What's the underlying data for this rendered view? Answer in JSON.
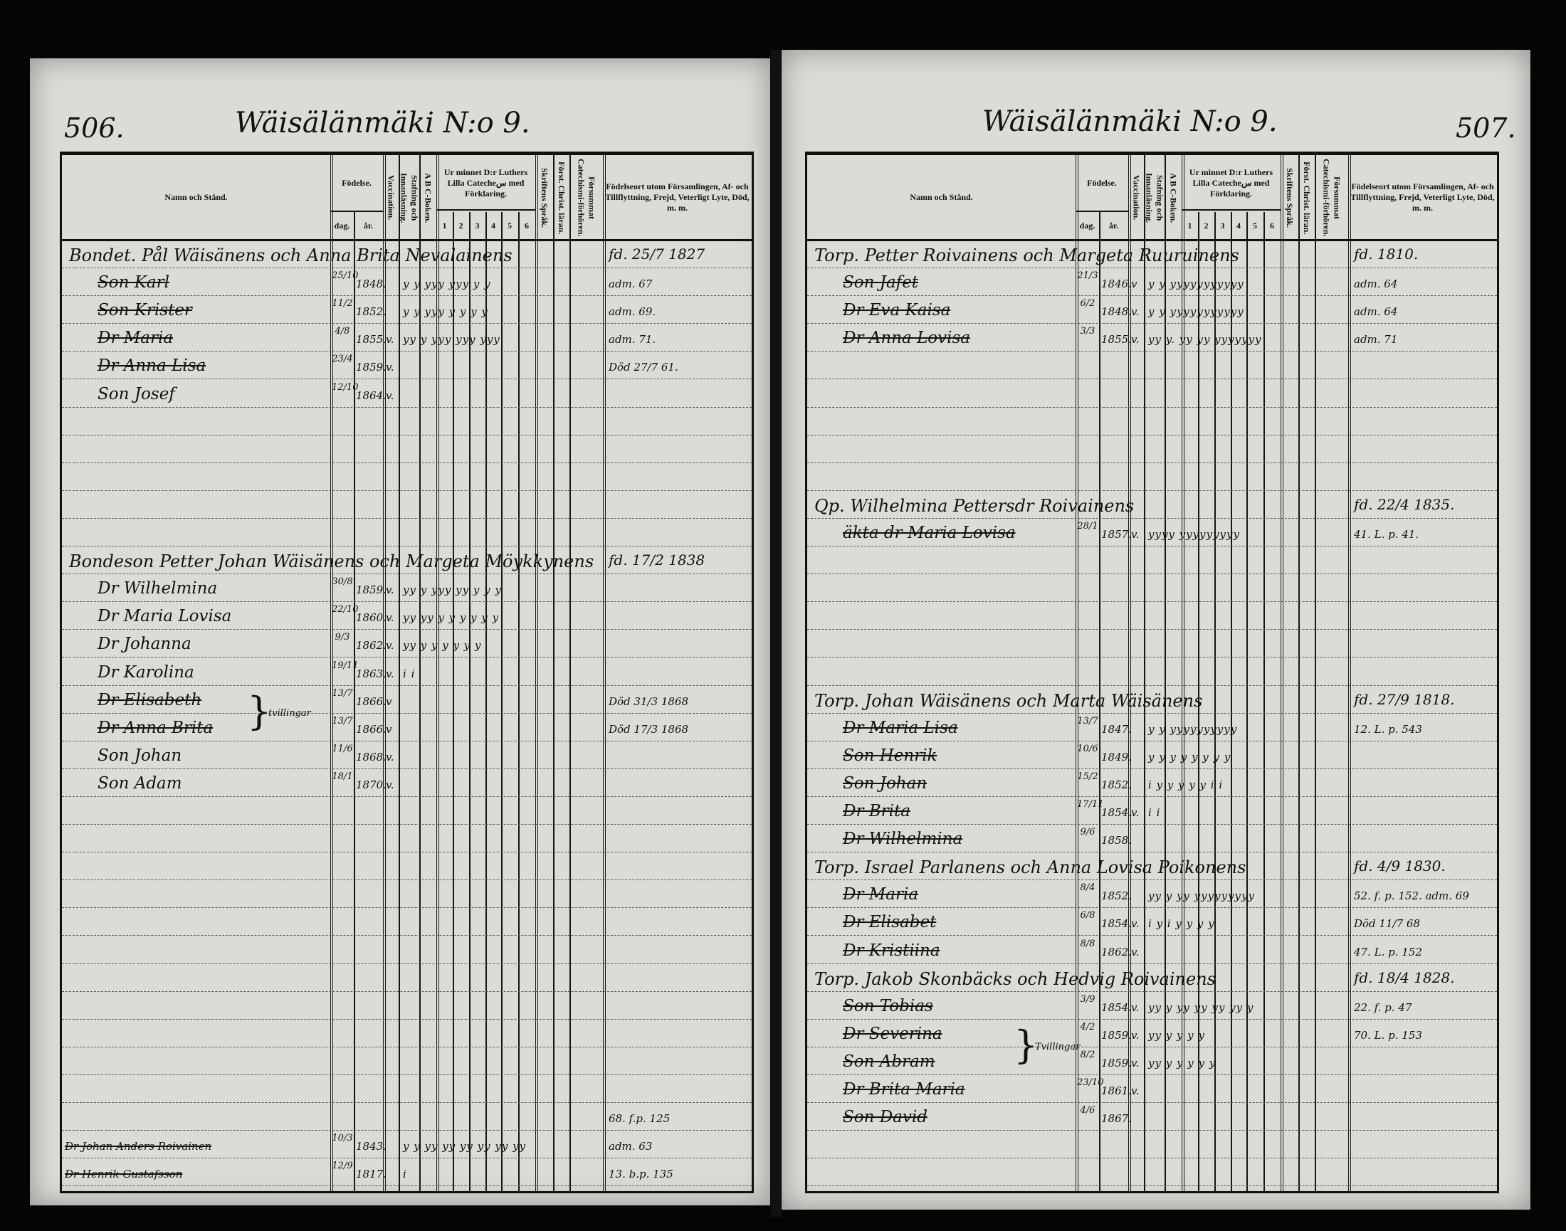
{
  "header": {
    "name_col": "Namn och Stånd.",
    "birth": "Födelse.",
    "day": "dag.",
    "year": "år.",
    "vaccination": "Vaccination.",
    "reading": "Stafning och Innanläsning.",
    "abc": "A B C-Boken.",
    "catechism": "Ur minnet D:r Luthers Lilla Catecheس med Förklaring.",
    "catechism_parts": [
      "1",
      "2",
      "3",
      "4",
      "5",
      "6"
    ],
    "scripture": "Skriftens Språk.",
    "christ": "Först. Christ. läran.",
    "missed": "Försummat Catechismi-förhören.",
    "notes": "Födelseort utom Församlingen, Af- och Tillflyttning, Frejd, Veterligt Lyte, Död, m. m."
  },
  "left": {
    "page_number": "506.",
    "title": "Wäisälänmäki N:o 9.",
    "twin_label": "tvillingar",
    "rows": [
      {
        "head": true,
        "name": "Bondet. Pål Wäisänens och Anna Brita Nevalainens",
        "note": "fd. 25/7 1827"
      },
      {
        "name": "Son Karl",
        "dag": "25/10",
        "year": "1848.",
        "vacc": "",
        "marks": "y  y  yyy yyy  y  y",
        "note": "adm. 67",
        "struck": true
      },
      {
        "name": "Son Krister",
        "dag": "11/2",
        "year": "1852.",
        "vacc": "",
        "marks": "y y  yyy  y  y  y  y",
        "note": "adm. 69.",
        "struck": true
      },
      {
        "name": "Dr Maria",
        "dag": "4/8",
        "year": "1855.",
        "vacc": "v.",
        "marks": "yy  y  yyy  yyy  yyy",
        "note": "adm. 71.",
        "struck": true
      },
      {
        "name": "Dr Anna Lisa",
        "dag": "23/4",
        "year": "1859.",
        "vacc": "v.",
        "marks": "",
        "note": "Död 27/7 61.",
        "struck": true
      },
      {
        "name": "Son Josef",
        "dag": "12/10",
        "year": "1864.",
        "vacc": "v."
      },
      {},
      {},
      {},
      {},
      {},
      {
        "head": true,
        "name": "Bondeson Petter Johan Wäisänens och Margeta Möykkynens",
        "note": "fd. 17/2 1838"
      },
      {
        "name": "Dr Wilhelmina",
        "dag": "30/8",
        "year": "1859.",
        "vacc": "v.",
        "marks": "yy  y  yyy  yy  y  y  y"
      },
      {
        "name": "Dr Maria Lovisa",
        "dag": "22/10",
        "year": "1860.",
        "vacc": "v.",
        "marks": "yy  yy  y  y  y  y  y  y"
      },
      {
        "name": "Dr Johanna",
        "dag": "9/3",
        "year": "1862.",
        "vacc": "v.",
        "marks": "yy  y  y  y  y  y  y"
      },
      {
        "name": "Dr Karolina",
        "dag": "19/11",
        "year": "1863.",
        "vacc": "v.",
        "marks": "i   i"
      },
      {
        "name": "Dr Elisabeth",
        "dag": "13/7",
        "year": "1866.",
        "vacc": "v",
        "note": "Död 31/3 1868",
        "struck": true
      },
      {
        "name": "Dr Anna Brita",
        "dag": "13/7",
        "year": "1866.",
        "vacc": "v",
        "note": "Död 17/3 1868",
        "struck": true
      },
      {
        "name": "Son Johan",
        "dag": "11/6",
        "year": "1868.",
        "vacc": "v."
      },
      {
        "name": "Son Adam",
        "dag": "18/1",
        "year": "1870.",
        "vacc": "v."
      },
      {},
      {},
      {},
      {},
      {},
      {},
      {},
      {},
      {},
      {},
      {},
      {
        "small": true,
        "name": "",
        "note": "68. f.p. 125"
      },
      {
        "small": true,
        "name": "Dr Johan Anders Roivainen",
        "dag": "10/3",
        "year": "1843.",
        "marks": "y  y  yy yy yy yy yy yy",
        "note": "adm. 63",
        "struck": true
      },
      {
        "small": true,
        "name": "Dr Henrik Gustafsson",
        "dag": "12/9",
        "year": "1817.",
        "marks": "i",
        "note": "13. b.p. 135",
        "struck": true
      }
    ]
  },
  "right": {
    "page_number": "507.",
    "title": "Wäisälänmäki N:o 9.",
    "twin_label": "Tvillingar",
    "rows": [
      {
        "head": true,
        "name": "Torp. Petter Roivainens och Margeta Ruuruinens",
        "note": "fd. 1810."
      },
      {
        "name": "Son Jafet",
        "dag": "21/3",
        "year": "1846.",
        "vacc": "v",
        "marks": "y  y  yyyyyyyyyyy",
        "note": "adm. 64",
        "struck": true
      },
      {
        "name": "Dr Eva Kaisa",
        "dag": "6/2",
        "year": "1848.",
        "vacc": "v.",
        "marks": "y  y  yyyyyyyyyyy",
        "note": "adm. 64",
        "struck": true
      },
      {
        "name": "Dr Anna Lovisa",
        "dag": "3/3",
        "year": "1855.",
        "vacc": "v.",
        "marks": "yy  y. yy yy yyyyyyy",
        "note": "adm. 71",
        "struck": true
      },
      {},
      {},
      {},
      {},
      {},
      {
        "head": true,
        "name": "Qp. Wilhelmina Pettersdr Roivainens",
        "note": "fd. 22/4 1835."
      },
      {
        "name": "äkta dr Maria Lovisa",
        "dag": "28/1",
        "year": "1857.",
        "vacc": "v.",
        "marks": "yyyy yyyyyyyyy",
        "note": "41. L. p. 41.",
        "struck": true
      },
      {},
      {},
      {},
      {},
      {},
      {
        "head": true,
        "name": "Torp. Johan Wäisänens och Marta Wäisänens",
        "note": "fd. 27/9 1818."
      },
      {
        "name": "Dr Maria Lisa",
        "dag": "13/7",
        "year": "1847.",
        "marks": "y  y  yyyyyyyyyy",
        "note": "12. L. p. 543",
        "struck": true
      },
      {
        "name": "Son Henrik",
        "dag": "10/6",
        "year": "1849.",
        "marks": "y  y  y  y  y  y  y  y",
        "struck": true
      },
      {
        "name": "Son Johan",
        "dag": "15/2",
        "year": "1852.",
        "marks": "i  y  y  y  y  y  i  i",
        "struck": true
      },
      {
        "name": "Dr Brita",
        "dag": "17/11",
        "year": "1854.",
        "vacc": "v.",
        "marks": "i   i",
        "struck": true
      },
      {
        "name": "Dr Wilhelmina",
        "dag": "9/6",
        "year": "1858.",
        "struck": true
      },
      {
        "head": true,
        "name": "Torp. Israel Parlanens och Anna Lovisa Poikonens",
        "note": "fd. 4/9 1830."
      },
      {
        "name": "Dr Maria",
        "dag": "8/4",
        "year": "1852.",
        "marks": "yy  y  yy yyyyyyyyy",
        "note": "52. f. p. 152. adm. 69",
        "struck": true
      },
      {
        "name": "Dr Elisabet",
        "dag": "6/8",
        "year": "1854.",
        "vacc": "v.",
        "marks": "i  y  i  y  y  y  y",
        "note": "Död 11/7 68",
        "struck": true
      },
      {
        "name": "Dr Kristiina",
        "dag": "8/8",
        "year": "1862.",
        "vacc": "v.",
        "note": "47. L. p. 152",
        "struck": true
      },
      {
        "head": true,
        "name": "Torp. Jakob Skonbäcks och Hedvig Roivainens",
        "note": "fd. 18/4 1828."
      },
      {
        "name": "Son Tobias",
        "dag": "3/9",
        "year": "1854.",
        "vacc": "v.",
        "marks": "yy y  yy yy yy yy  y",
        "note": "22. f. p. 47",
        "struck": true
      },
      {
        "name": "Dr Severina",
        "dag": "4/2",
        "year": "1859.",
        "vacc": "v.",
        "marks": "yy y  y  y  y",
        "note": "70. L. p. 153",
        "struck": true
      },
      {
        "name": "Son Abram",
        "dag": "8/2",
        "year": "1859.",
        "vacc": "v.",
        "marks": "yy y  y  y  y  y",
        "struck": true
      },
      {
        "name": "Dr Brita Maria",
        "dag": "23/10",
        "year": "1861.",
        "vacc": "v.",
        "struck": true
      },
      {
        "name": "Son David",
        "dag": "4/6",
        "year": "1867.",
        "struck": true
      },
      {},
      {}
    ]
  }
}
